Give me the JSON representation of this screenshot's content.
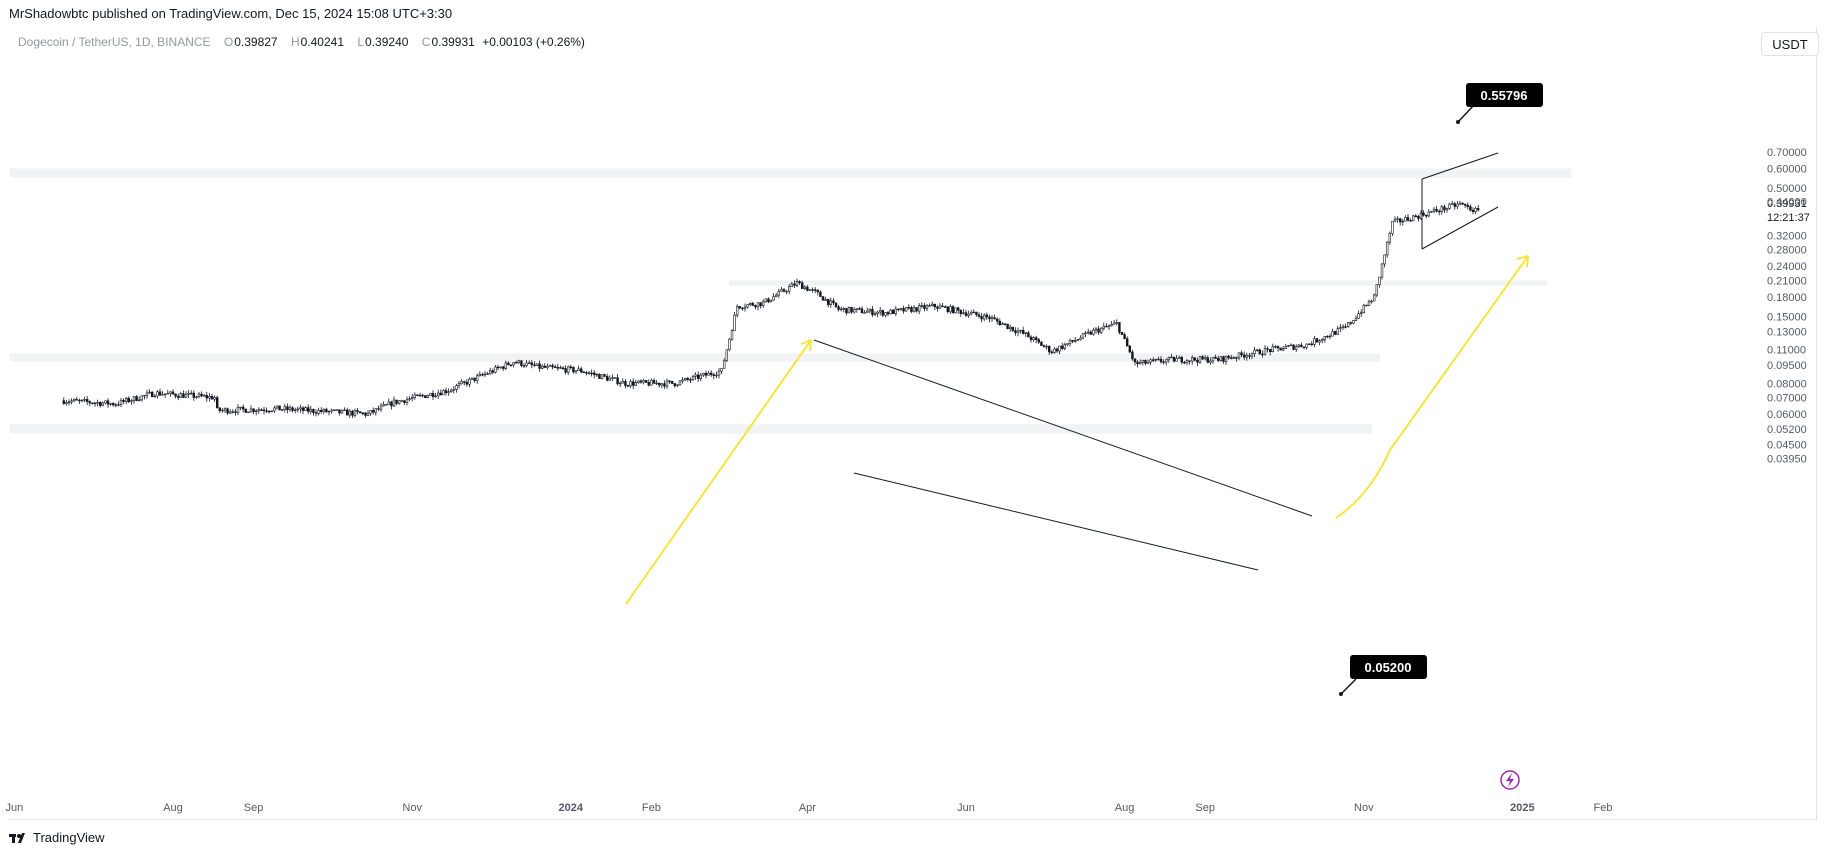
{
  "header": {
    "published": "MrShadowbtc published on TradingView.com, Dec 15, 2024 15:08 UTC+3:30"
  },
  "legend": {
    "symbol": "Dogecoin / TetherUS, 1D, BINANCE",
    "open_label": "O",
    "open": "0.39827",
    "high_label": "H",
    "high": "0.40241",
    "low_label": "L",
    "low": "0.39240",
    "close_label": "C",
    "close": "0.39931",
    "change": "+0.00103 (+0.26%)"
  },
  "toolbar": {
    "currency": "USDT"
  },
  "footer": {
    "brand": "TradingView"
  },
  "chart_data": {
    "type": "candlestick",
    "scale": "log",
    "ylim": [
      0.035,
      0.75
    ],
    "y_ticks": [
      "0.70000",
      "0.60000",
      "0.50000",
      "0.44000",
      "0.32000",
      "0.28000",
      "0.24000",
      "0.21000",
      "0.18000",
      "0.15000",
      "0.13000",
      "0.11000",
      "0.09500",
      "0.08000",
      "0.07000",
      "0.06000",
      "0.05200",
      "0.04500",
      "0.03950"
    ],
    "x_ticks": [
      "Jun",
      "Aug",
      "Sep",
      "Nov",
      "2024",
      "Feb",
      "Apr",
      "Jun",
      "Aug",
      "Sep",
      "Nov",
      "2025",
      "Feb"
    ],
    "last_price": "0.39931",
    "countdown": "12:21:37",
    "series": [
      {
        "x": [
          "2023-06-20",
          "2023-07-10",
          "2023-07-25",
          "2023-08-17",
          "2023-08-18",
          "2023-09-10",
          "2023-10-15",
          "2023-10-25",
          "2023-11-15",
          "2023-12-10",
          "2023-12-20",
          "2024-01-05",
          "2024-01-22",
          "2024-02-10",
          "2024-02-28",
          "2024-03-05",
          "2024-03-15",
          "2024-03-28",
          "2024-04-05",
          "2024-04-13",
          "2024-05-01",
          "2024-05-20",
          "2024-06-10",
          "2024-06-24",
          "2024-07-04",
          "2024-07-20",
          "2024-07-29",
          "2024-08-05",
          "2024-08-20",
          "2024-09-06",
          "2024-09-25",
          "2024-10-10",
          "2024-10-25",
          "2024-11-05",
          "2024-11-12",
          "2024-11-20",
          "2024-12-01",
          "2024-12-08",
          "2024-12-15"
        ],
        "y": [
          0.068,
          0.066,
          0.073,
          0.07,
          0.062,
          0.063,
          0.06,
          0.067,
          0.075,
          0.098,
          0.093,
          0.09,
          0.08,
          0.08,
          0.09,
          0.165,
          0.17,
          0.205,
          0.185,
          0.16,
          0.155,
          0.165,
          0.148,
          0.126,
          0.108,
          0.13,
          0.14,
          0.096,
          0.1,
          0.1,
          0.109,
          0.115,
          0.135,
          0.18,
          0.36,
          0.38,
          0.41,
          0.43,
          0.399
        ]
      }
    ],
    "zones": [
      {
        "from": 0.55,
        "to": 0.6
      },
      {
        "from": 0.2,
        "to": 0.21
      },
      {
        "from": 0.098,
        "to": 0.106
      },
      {
        "from": 0.05,
        "to": 0.0545
      }
    ],
    "callouts": [
      "0.55796",
      "0.05200"
    ]
  }
}
